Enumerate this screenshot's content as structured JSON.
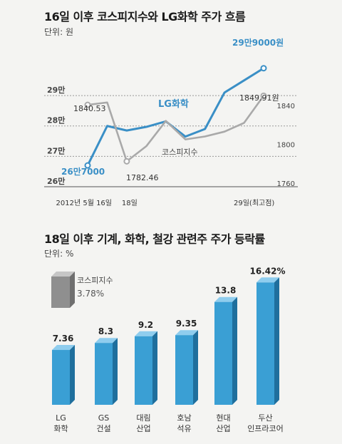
{
  "chart_data": [
    {
      "type": "line",
      "title": "16일 이후 코스피지수와 LG화학 주가 흐름",
      "unit_label": "단위: 원",
      "left_ticks": [
        "29만",
        "28만",
        "27만",
        "26만"
      ],
      "left_tick_values": [
        290000,
        280000,
        270000,
        260000
      ],
      "right_ticks": [
        "1840",
        "1800",
        "1760"
      ],
      "right_tick_values": [
        1840,
        1800,
        1760
      ],
      "x_labels": [
        "2012년 5월 16일",
        "18일",
        "29일(최고점)"
      ],
      "x_label_positions": [
        0,
        2,
        9
      ],
      "left_ylim": [
        260000,
        298000
      ],
      "right_ylim": [
        1760,
        1878
      ],
      "series": [
        {
          "name": "LG화학",
          "axis": "left",
          "color": "#3a8fc6",
          "x": [
            0,
            1,
            2,
            3,
            4,
            5,
            6,
            7,
            8,
            9
          ],
          "values": [
            267000,
            280000,
            278500,
            279700,
            281500,
            276500,
            279000,
            291000,
            295000,
            299000
          ]
        },
        {
          "name": "코스피지수",
          "axis": "right",
          "color": "#a9a9a9",
          "x": [
            0,
            1,
            2,
            3,
            4,
            5,
            6,
            7,
            8,
            9
          ],
          "values": [
            1840.53,
            1843,
            1782.46,
            1798,
            1824,
            1805,
            1808,
            1813,
            1822,
            1849.91
          ]
        }
      ],
      "annotations": [
        {
          "text": "1840.53",
          "series": "코스피지수",
          "point": 0
        },
        {
          "text": "26만7000",
          "series": "LG화학",
          "point": 0
        },
        {
          "text": "1782.46",
          "series": "코스피지수",
          "point": 2
        },
        {
          "text": "29만9000원",
          "series": "LG화학",
          "point": 9
        },
        {
          "text": "1849.91원",
          "series": "코스피지수",
          "point": 9
        }
      ]
    },
    {
      "type": "bar",
      "title": "18일 이후 기계, 화학, 철강 관련주 주가 등락률",
      "unit_label": "단위: %",
      "categories": [
        "LG|화학",
        "GS|건설",
        "대림|산업",
        "호남|석유",
        "현대|산업",
        "두산|인프라코어"
      ],
      "values": [
        7.36,
        8.3,
        9.2,
        9.35,
        13.8,
        16.42
      ],
      "value_labels": [
        "7.36",
        "8.3",
        "9.2",
        "9.35",
        "13.8",
        "16.42%"
      ],
      "ylim": [
        0,
        17.5
      ],
      "bar_color": "#3a9fd4",
      "reference": {
        "name": "코스피지수",
        "value_label": "3.78%",
        "color": "#8f8f8f"
      }
    }
  ]
}
